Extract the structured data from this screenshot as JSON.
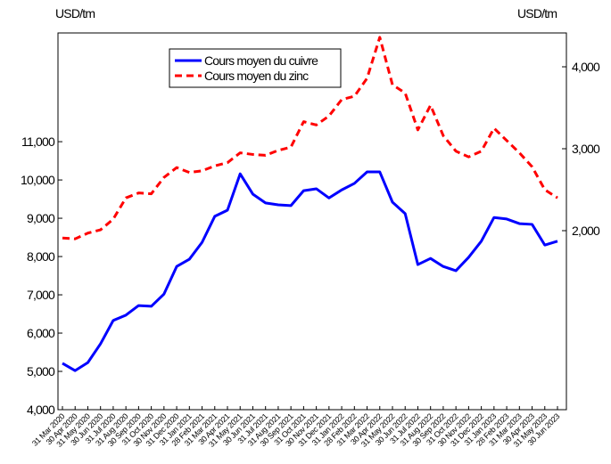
{
  "chart_data": {
    "type": "line",
    "y_label": "USD/tm",
    "y2_label": "USD/tm",
    "categories": [
      "31 Mar 2020",
      "30 Apr 2020",
      "31 May 2020",
      "30 Jun 2020",
      "31 Jul 2020",
      "31 Aug 2020",
      "30 Sep 2020",
      "31 Oct 2020",
      "30 Nov 2020",
      "31 Dec 2020",
      "31 Jan 2021",
      "28 Feb 2021",
      "31 Mar 2021",
      "30 Apr 2021",
      "31 May 2021",
      "30 Jun 2021",
      "31 Jul 2021",
      "31 Aug 2021",
      "30 Sep 2021",
      "31 Oct 2021",
      "30 Nov 2021",
      "31 Dec 2021",
      "31 Jan 2022",
      "28 Feb 2022",
      "31 Mar 2022",
      "30 Apr 2022",
      "31 May 2022",
      "30 Jun 2022",
      "31 Jul 2022",
      "31 Aug 2022",
      "30 Sep 2022",
      "31 Oct 2022",
      "30 Nov 2022",
      "31 Dec 2022",
      "31 Jan 2023",
      "28 Feb 2023",
      "31 Mar 2023",
      "30 Apr 2023",
      "31 May 2023",
      "30 Jun 2023"
    ],
    "series": [
      {
        "name": "Cours moyen du cuivre",
        "color": "#0000ff",
        "dash": false,
        "axis": "y",
        "values": [
          5210,
          5020,
          5230,
          5720,
          6330,
          6470,
          6720,
          6700,
          7020,
          7740,
          7930,
          8370,
          9050,
          9210,
          10160,
          9630,
          9400,
          9350,
          9330,
          9720,
          9770,
          9530,
          9740,
          9910,
          10210,
          10210,
          9420,
          9120,
          7790,
          7950,
          7740,
          7630,
          7980,
          8400,
          9020,
          8980,
          8860,
          8840,
          8300,
          8400
        ]
      },
      {
        "name": "Cours moyen du zinc",
        "color": "#ff0000",
        "dash": true,
        "axis": "y2",
        "values": [
          1910,
          1900,
          1970,
          2010,
          2140,
          2400,
          2460,
          2450,
          2650,
          2770,
          2710,
          2730,
          2790,
          2830,
          2950,
          2930,
          2920,
          2980,
          3020,
          3330,
          3290,
          3400,
          3600,
          3640,
          3860,
          4360,
          3780,
          3680,
          3230,
          3530,
          3160,
          2970,
          2900,
          2970,
          3250,
          3100,
          2950,
          2780,
          2500,
          2400
        ]
      }
    ],
    "ylim": [
      4000,
      13840
    ],
    "yticks": [
      {
        "value": 4000,
        "label": "4,000"
      },
      {
        "value": 5000,
        "label": "5,000"
      },
      {
        "value": 6000,
        "label": "6,000"
      },
      {
        "value": 7000,
        "label": "7,000"
      },
      {
        "value": 8000,
        "label": "8,000"
      },
      {
        "value": 9000,
        "label": "9,000"
      },
      {
        "value": 10000,
        "label": "10,000"
      },
      {
        "value": 11000,
        "label": "11,000"
      }
    ],
    "y2lim": [
      -185,
      4413
    ],
    "y2ticks": [
      {
        "value": 2000,
        "label": "2,000"
      },
      {
        "value": 3000,
        "label": "3,000"
      },
      {
        "value": 4000,
        "label": "4,000"
      }
    ]
  }
}
